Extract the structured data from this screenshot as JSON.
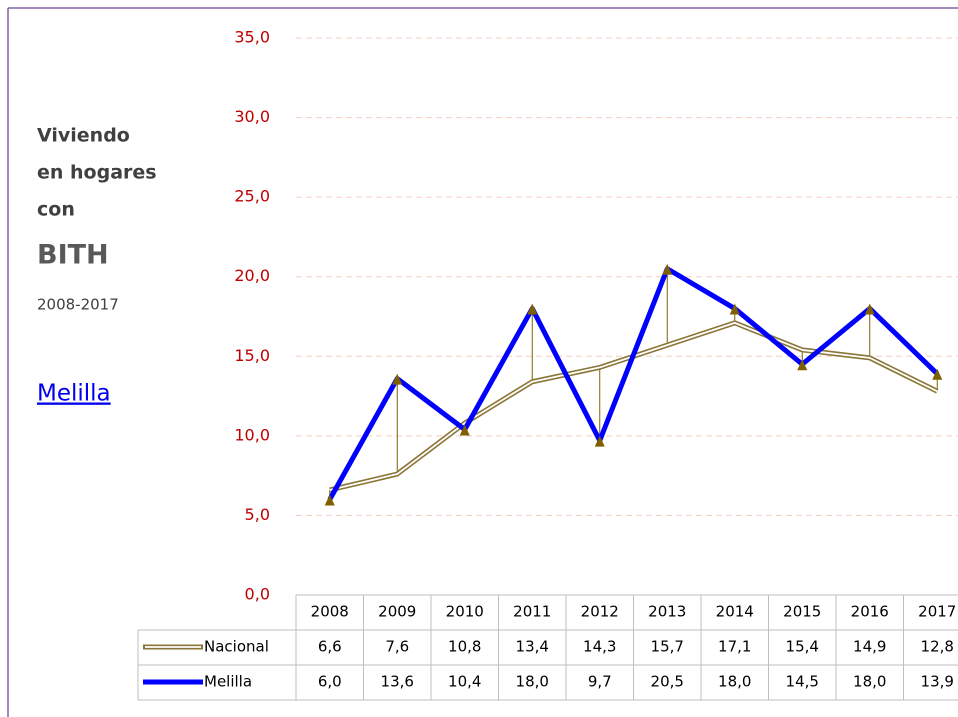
{
  "chart_data": {
    "type": "line",
    "title_lines": [
      "Viviendo",
      "en hogares",
      "con"
    ],
    "title": "BITH",
    "subtitle": "2008-2017",
    "link": "Melilla",
    "categories": [
      "2008",
      "2009",
      "2010",
      "2011",
      "2012",
      "2013",
      "2014",
      "2015",
      "2016",
      "2017"
    ],
    "series": [
      {
        "name": "Nacional",
        "color": "#8b7536",
        "values": [
          6.6,
          7.6,
          10.8,
          13.4,
          14.3,
          15.7,
          17.1,
          15.4,
          14.9,
          12.8
        ],
        "value_labels": [
          "6,6",
          "7,6",
          "10,8",
          "13,4",
          "14,3",
          "15,7",
          "17,1",
          "15,4",
          "14,9",
          "12,8"
        ]
      },
      {
        "name": "Melilla",
        "color": "#0000ff",
        "values": [
          6,
          13.6,
          10.4,
          18,
          9.7,
          20.5,
          18,
          14.5,
          18,
          13.9
        ],
        "value_labels": [
          "6,0",
          "13,6",
          "10,4",
          "18,0",
          "9,7",
          "20,5",
          "18,0",
          "14,5",
          "18,0",
          "13,9"
        ]
      }
    ],
    "ylim": [
      0,
      35
    ],
    "yticks": [
      {
        "value": 0,
        "label": "0,0"
      },
      {
        "value": 5,
        "label": "5,0"
      },
      {
        "value": 10,
        "label": "10,0"
      },
      {
        "value": 15,
        "label": "15,0"
      },
      {
        "value": 20,
        "label": "20,0"
      },
      {
        "value": 25,
        "label": "25,0"
      },
      {
        "value": 30,
        "label": "30,0"
      },
      {
        "value": 35,
        "label": "35,0"
      }
    ],
    "grid": true
  }
}
